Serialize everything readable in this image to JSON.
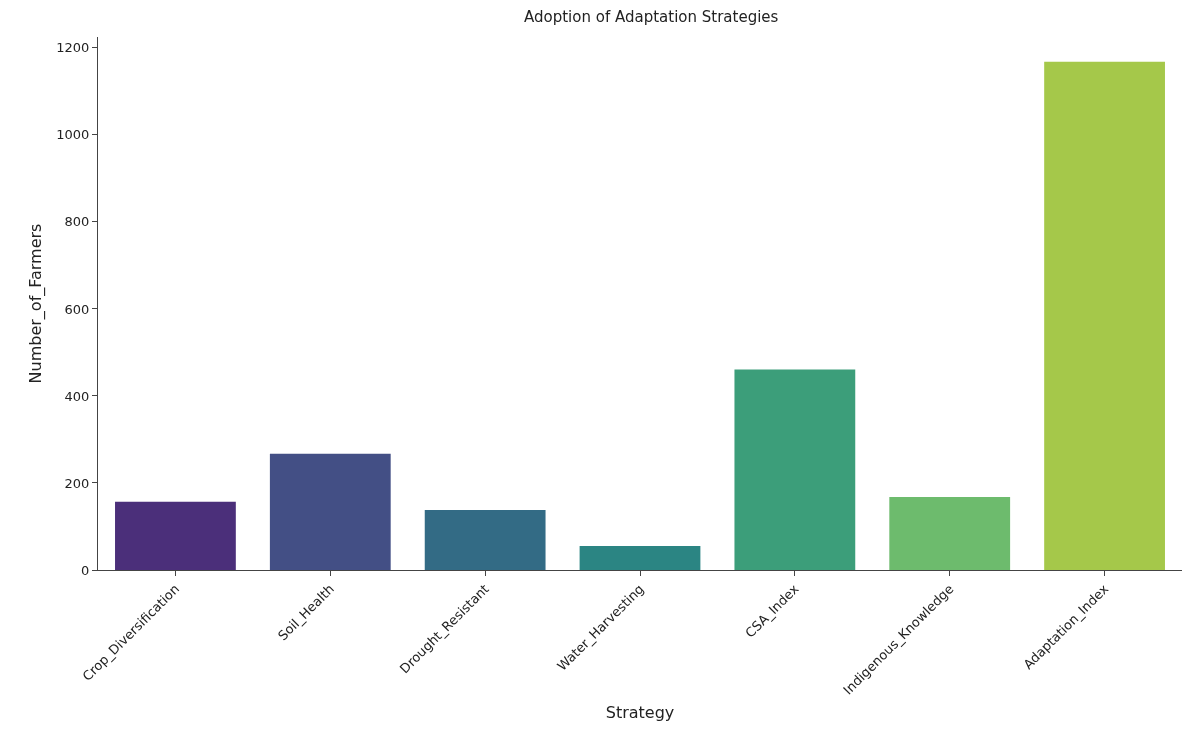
{
  "chart_data": {
    "type": "bar",
    "title": "Adoption of Adaptation Strategies",
    "xlabel": "Strategy",
    "ylabel": "Number_of_Farmers",
    "categories": [
      "Crop_Diversification",
      "Soil_Health",
      "Drought_Resistant",
      "Water_Harvesting",
      "CSA_Index",
      "Indigenous_Knowledge",
      "Adaptation_Index"
    ],
    "values": [
      157,
      267,
      138,
      55,
      461,
      168,
      1168
    ],
    "colors": [
      "#4b2f7a",
      "#434f85",
      "#336b85",
      "#2b8583",
      "#3c9e7a",
      "#6dbb6d",
      "#a5c84a"
    ],
    "ylim": [
      0,
      1225
    ],
    "yticks": [
      0,
      200,
      400,
      600,
      800,
      1000,
      1200
    ]
  }
}
